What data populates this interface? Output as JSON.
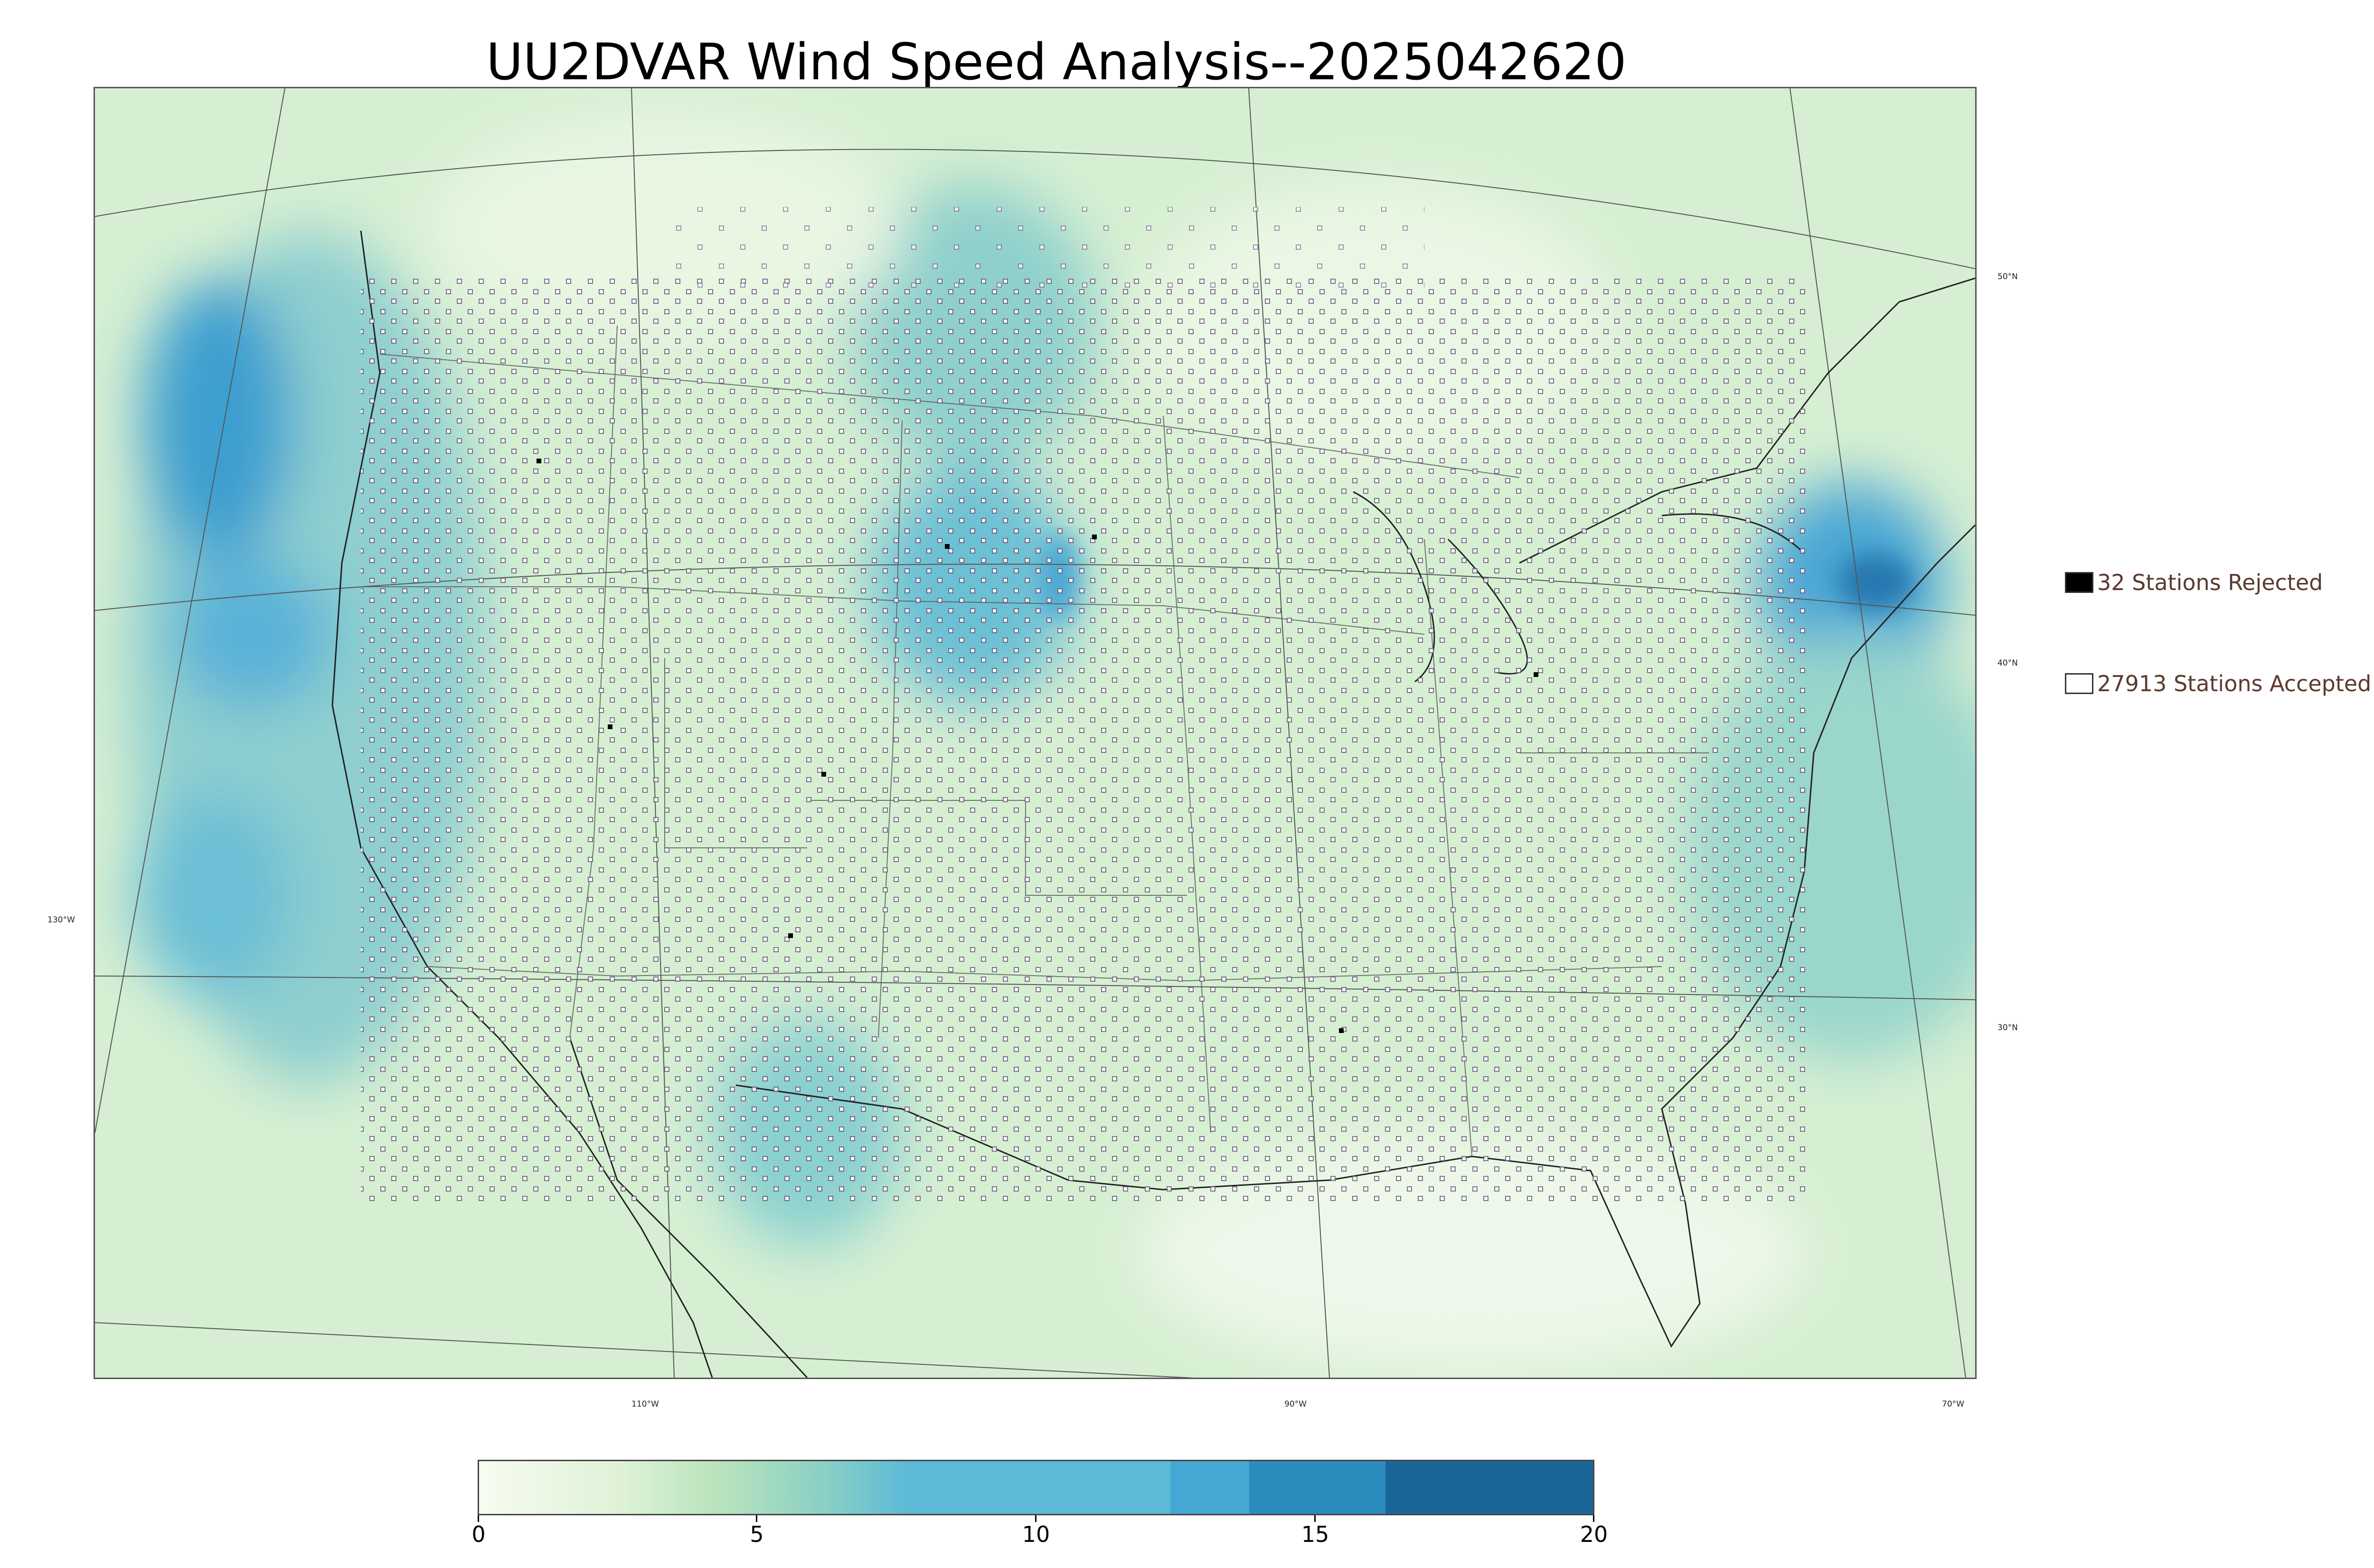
{
  "title": "UU2DVAR Wind Speed Analysis--2025042620",
  "map": {
    "lat_labels": [
      "50°N",
      "40°N",
      "30°N"
    ],
    "lon_labels": [
      "130°W",
      "110°W",
      "90°W",
      "70°W"
    ]
  },
  "legend": {
    "rejected": {
      "count": 32,
      "label": "32 Stations Rejected",
      "marker": "filled-black-square"
    },
    "accepted": {
      "count": 27913,
      "label": "27913 Stations Accepted",
      "marker": "open-square"
    }
  },
  "colorbar": {
    "min": 0,
    "max": 20,
    "tick_labels": [
      "0",
      "5",
      "10",
      "15",
      "20"
    ],
    "colors": [
      "#f7fcf0",
      "#e0f3db",
      "#ccebc5",
      "#a8ddb5",
      "#7bccc4",
      "#4eb3d3",
      "#2b8cbe",
      "#1a6699"
    ]
  },
  "colors": {
    "low": "#f2faee",
    "mid": "#b5e2bd",
    "high": "#5bb6d6",
    "max": "#1d6aa0",
    "station_outline": "#7a6a8a",
    "border": "#333333"
  }
}
